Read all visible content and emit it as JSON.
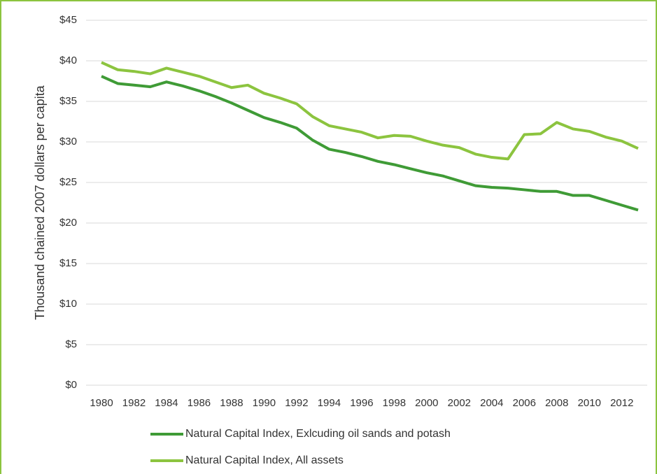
{
  "chart_data": {
    "type": "line",
    "y_label": "Thousand chained 2007 dollars per capita",
    "x": [
      1980,
      1981,
      1982,
      1983,
      1984,
      1985,
      1986,
      1987,
      1988,
      1989,
      1990,
      1991,
      1992,
      1993,
      1994,
      1995,
      1996,
      1997,
      1998,
      1999,
      2000,
      2001,
      2002,
      2003,
      2004,
      2005,
      2006,
      2007,
      2008,
      2009,
      2010,
      2011,
      2012,
      2013
    ],
    "xlim": [
      1980,
      2013
    ],
    "xticks": [
      1980,
      1982,
      1984,
      1986,
      1988,
      1990,
      1992,
      1994,
      1996,
      1998,
      2000,
      2002,
      2004,
      2006,
      2008,
      2010,
      2012
    ],
    "ylim": [
      0,
      45
    ],
    "yticks": [
      {
        "value": 0,
        "label": "$0"
      },
      {
        "value": 5,
        "label": "$5"
      },
      {
        "value": 10,
        "label": "$10"
      },
      {
        "value": 15,
        "label": "$15"
      },
      {
        "value": 20,
        "label": "$20"
      },
      {
        "value": 25,
        "label": "$25"
      },
      {
        "value": 30,
        "label": "$30"
      },
      {
        "value": 35,
        "label": "$35"
      },
      {
        "value": 40,
        "label": "$40"
      },
      {
        "value": 45,
        "label": "$45"
      }
    ],
    "grid": true,
    "legend": "bottom",
    "series": [
      {
        "name": "Natural Capital Index, Exlcuding oil sands and potash",
        "color": "#3f9b36",
        "values": [
          38.1,
          37.2,
          37.0,
          36.8,
          37.4,
          36.9,
          36.3,
          35.6,
          34.8,
          33.9,
          33.0,
          32.4,
          31.7,
          30.2,
          29.1,
          28.7,
          28.2,
          27.6,
          27.2,
          26.7,
          26.2,
          25.8,
          25.2,
          24.6,
          24.4,
          24.3,
          24.1,
          23.9,
          23.9,
          23.4,
          23.4,
          22.8,
          22.2,
          21.6
        ]
      },
      {
        "name": "Natural Capital Index, All assets",
        "color": "#8cc43f",
        "values": [
          39.8,
          38.9,
          38.7,
          38.4,
          39.1,
          38.6,
          38.1,
          37.4,
          36.7,
          37.0,
          36.0,
          35.4,
          34.7,
          33.1,
          32.0,
          31.6,
          31.2,
          30.5,
          30.8,
          30.7,
          30.1,
          29.6,
          29.3,
          28.5,
          28.1,
          27.9,
          30.9,
          31.0,
          32.4,
          31.6,
          31.3,
          30.6,
          30.1,
          29.2
        ]
      }
    ]
  }
}
